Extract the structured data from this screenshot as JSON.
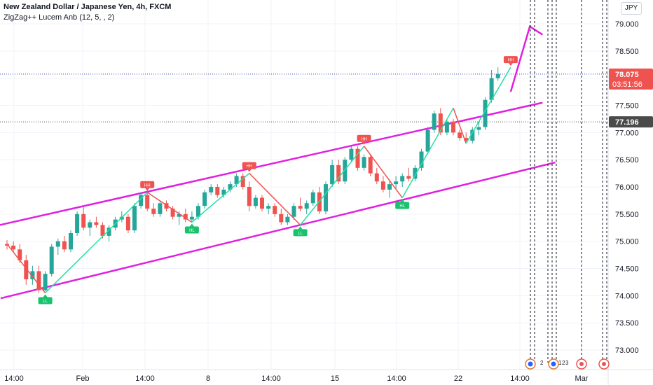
{
  "header": {
    "title": "New Zealand Dollar / Japanese Yen, 4h, FXCM",
    "indicator": "ZigZag++ Lucem Anb (12, 5, , 2)",
    "currency": "JPY"
  },
  "chart_data": {
    "type": "candlestick",
    "symbol": "NZDJPY",
    "timeframe": "4h",
    "y_axis": {
      "ylim": [
        72.7,
        79.4
      ],
      "ticks": [
        "73.000",
        "73.500",
        "74.000",
        "74.500",
        "75.000",
        "75.500",
        "76.000",
        "76.500",
        "77.000",
        "77.500",
        "78.000",
        "78.500",
        "79.000"
      ]
    },
    "x_axis": {
      "ticks": [
        "14:00",
        "Feb",
        "14:00",
        "8",
        "14:00",
        "15",
        "14:00",
        "22",
        "14:00",
        "Mar"
      ]
    },
    "last_price": "78.075",
    "countdown": "03:51:56",
    "crosshair_price": "77.196",
    "colors": {
      "up": "#26a69a",
      "down": "#ef5350",
      "channel": "#e020e0",
      "zigzag_up": "#26e0a0",
      "zigzag_down": "#ef5350",
      "price_tag": "#ef5350",
      "crosshair_tag": "#4a4a4a"
    },
    "candles": [
      [
        74.95,
        75.02,
        74.85,
        74.92
      ],
      [
        74.92,
        75.0,
        74.8,
        74.85
      ],
      [
        74.85,
        74.95,
        74.6,
        74.65
      ],
      [
        74.65,
        74.75,
        74.2,
        74.3
      ],
      [
        74.3,
        74.55,
        74.2,
        74.45
      ],
      [
        74.45,
        74.55,
        74.05,
        74.1
      ],
      [
        74.1,
        74.45,
        74.08,
        74.4
      ],
      [
        74.4,
        74.95,
        74.35,
        74.9
      ],
      [
        74.9,
        75.05,
        74.75,
        75.0
      ],
      [
        75.0,
        75.1,
        74.8,
        74.85
      ],
      [
        74.85,
        75.2,
        74.8,
        75.15
      ],
      [
        75.15,
        75.55,
        75.1,
        75.5
      ],
      [
        75.5,
        75.65,
        75.2,
        75.25
      ],
      [
        75.25,
        75.4,
        75.1,
        75.35
      ],
      [
        75.35,
        75.45,
        75.25,
        75.3
      ],
      [
        75.3,
        75.35,
        75.05,
        75.1
      ],
      [
        75.1,
        75.3,
        75.0,
        75.25
      ],
      [
        75.25,
        75.45,
        75.2,
        75.4
      ],
      [
        75.4,
        75.55,
        75.35,
        75.45
      ],
      [
        75.45,
        75.5,
        75.15,
        75.2
      ],
      [
        75.2,
        75.7,
        75.15,
        75.65
      ],
      [
        75.65,
        75.9,
        75.6,
        75.85
      ],
      [
        75.85,
        75.9,
        75.55,
        75.6
      ],
      [
        75.6,
        75.7,
        75.45,
        75.5
      ],
      [
        75.5,
        75.75,
        75.45,
        75.7
      ],
      [
        75.7,
        75.75,
        75.55,
        75.6
      ],
      [
        75.6,
        75.65,
        75.4,
        75.45
      ],
      [
        75.45,
        75.55,
        75.3,
        75.5
      ],
      [
        75.5,
        75.6,
        75.35,
        75.4
      ],
      [
        75.4,
        75.55,
        75.35,
        75.45
      ],
      [
        75.45,
        75.7,
        75.4,
        75.65
      ],
      [
        75.65,
        75.95,
        75.6,
        75.9
      ],
      [
        75.9,
        76.05,
        75.85,
        76.0
      ],
      [
        76.0,
        76.05,
        75.8,
        75.85
      ],
      [
        75.85,
        76.0,
        75.8,
        75.95
      ],
      [
        75.95,
        76.1,
        75.9,
        76.05
      ],
      [
        76.05,
        76.25,
        76.0,
        76.2
      ],
      [
        76.2,
        76.25,
        75.95,
        76.0
      ],
      [
        76.0,
        76.1,
        75.55,
        75.65
      ],
      [
        75.65,
        75.85,
        75.6,
        75.8
      ],
      [
        75.8,
        75.85,
        75.55,
        75.6
      ],
      [
        75.6,
        75.7,
        75.5,
        75.65
      ],
      [
        75.65,
        75.7,
        75.45,
        75.5
      ],
      [
        75.5,
        75.6,
        75.3,
        75.35
      ],
      [
        75.35,
        75.5,
        75.3,
        75.45
      ],
      [
        75.45,
        75.7,
        75.4,
        75.65
      ],
      [
        75.65,
        75.8,
        75.55,
        75.6
      ],
      [
        75.6,
        75.75,
        75.5,
        75.7
      ],
      [
        75.7,
        75.95,
        75.65,
        75.9
      ],
      [
        75.9,
        76.0,
        75.5,
        75.55
      ],
      [
        75.55,
        76.1,
        75.5,
        76.05
      ],
      [
        76.05,
        76.5,
        76.0,
        76.4
      ],
      [
        76.4,
        76.5,
        76.05,
        76.1
      ],
      [
        76.1,
        76.55,
        76.05,
        76.5
      ],
      [
        76.5,
        76.75,
        76.45,
        76.7
      ],
      [
        76.7,
        76.75,
        76.3,
        76.35
      ],
      [
        76.35,
        76.6,
        76.3,
        76.55
      ],
      [
        76.55,
        76.6,
        76.2,
        76.25
      ],
      [
        76.25,
        76.35,
        76.05,
        76.1
      ],
      [
        76.1,
        76.2,
        75.9,
        75.95
      ],
      [
        75.95,
        76.1,
        75.8,
        76.05
      ],
      [
        76.05,
        76.2,
        75.95,
        76.1
      ],
      [
        76.1,
        76.25,
        76.0,
        76.2
      ],
      [
        76.2,
        76.35,
        76.1,
        76.15
      ],
      [
        76.15,
        76.4,
        76.1,
        76.35
      ],
      [
        76.35,
        76.7,
        76.3,
        76.65
      ],
      [
        76.65,
        77.1,
        76.6,
        77.05
      ],
      [
        77.05,
        77.4,
        77.0,
        77.35
      ],
      [
        77.35,
        77.45,
        76.95,
        77.0
      ],
      [
        77.0,
        77.25,
        76.95,
        77.2
      ],
      [
        77.2,
        77.25,
        76.95,
        77.0
      ],
      [
        77.0,
        77.05,
        76.85,
        76.9
      ],
      [
        76.9,
        77.0,
        76.8,
        76.85
      ],
      [
        76.85,
        77.1,
        76.8,
        77.05
      ],
      [
        77.05,
        77.2,
        76.95,
        77.1
      ],
      [
        77.1,
        77.65,
        77.05,
        77.6
      ],
      [
        77.6,
        78.15,
        77.55,
        78.0
      ],
      [
        78.0,
        78.2,
        77.95,
        78.075
      ]
    ],
    "zigzag": [
      [
        0,
        74.95
      ],
      [
        6,
        74.05
      ],
      [
        22,
        75.9
      ],
      [
        29,
        75.35
      ],
      [
        38,
        76.25
      ],
      [
        46,
        75.3
      ],
      [
        56,
        76.75
      ],
      [
        62,
        75.8
      ],
      [
        70,
        77.45
      ],
      [
        72,
        76.8
      ],
      [
        79,
        78.2
      ]
    ],
    "zigzag_labels": [
      {
        "i": 6,
        "v": 74.05,
        "text": "LL",
        "kind": "low"
      },
      {
        "i": 22,
        "v": 75.9,
        "text": "HH",
        "kind": "high"
      },
      {
        "i": 29,
        "v": 75.35,
        "text": "HL",
        "kind": "low"
      },
      {
        "i": 38,
        "v": 76.25,
        "text": "HH",
        "kind": "high"
      },
      {
        "i": 46,
        "v": 75.3,
        "text": "LL",
        "kind": "low"
      },
      {
        "i": 56,
        "v": 76.75,
        "text": "HH",
        "kind": "high"
      },
      {
        "i": 62,
        "v": 75.8,
        "text": "HL",
        "kind": "low"
      },
      {
        "i": 79,
        "v": 78.2,
        "text": "HH",
        "kind": "high"
      }
    ],
    "channel": {
      "upper": [
        [
          -3,
          75.25
        ],
        [
          84,
          77.55
        ]
      ],
      "lower": [
        [
          -1,
          73.95
        ],
        [
          86,
          76.45
        ]
      ]
    },
    "projection": [
      [
        79,
        77.75
      ],
      [
        82,
        78.95
      ],
      [
        84,
        78.8
      ]
    ],
    "event_markers": [
      "2",
      "1",
      "2",
      "3"
    ]
  }
}
